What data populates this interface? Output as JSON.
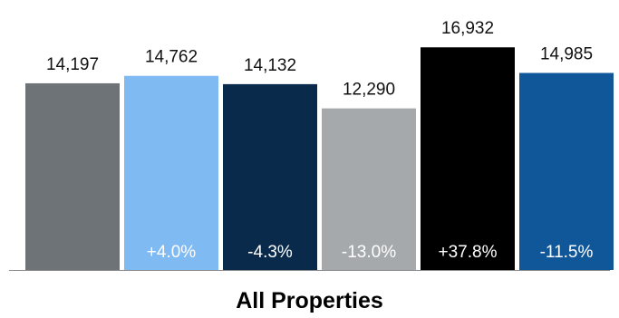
{
  "chart_data": {
    "type": "bar",
    "category": "All Properties",
    "ylim": [
      0,
      17500
    ],
    "bars": [
      {
        "value": 14197,
        "value_label": "14,197",
        "change": "",
        "color": "#6e7378",
        "change_color": "#ffffff"
      },
      {
        "value": 14762,
        "value_label": "14,762",
        "change": "+4.0%",
        "color": "#7fbaf2",
        "change_color": "#ffffff"
      },
      {
        "value": 14132,
        "value_label": "14,132",
        "change": "-4.3%",
        "color": "#0a2a4b",
        "change_color": "#ffffff"
      },
      {
        "value": 12290,
        "value_label": "12,290",
        "change": "-13.0%",
        "color": "#a6a9ac",
        "change_color": "#ffffff"
      },
      {
        "value": 16932,
        "value_label": "16,932",
        "change": "+37.8%",
        "color": "#000000",
        "change_color": "#ffffff"
      },
      {
        "value": 14985,
        "value_label": "14,985",
        "change": "-11.5%",
        "color": "#0f5799",
        "change_color": "#ffffff"
      }
    ],
    "grid": false,
    "legend": "none"
  }
}
